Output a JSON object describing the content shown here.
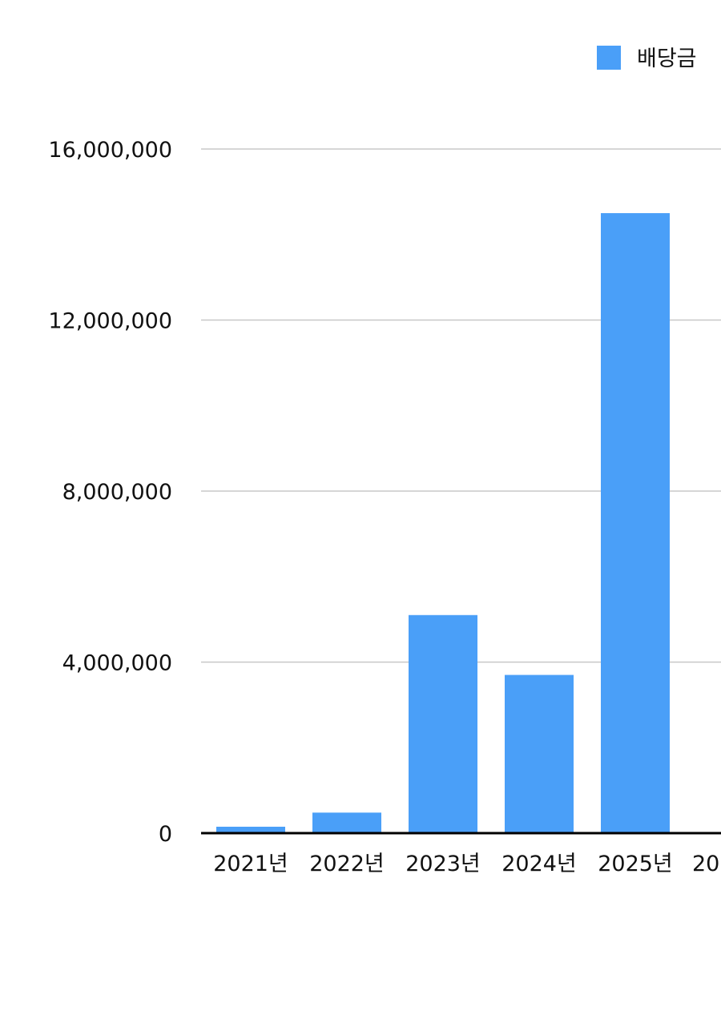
{
  "chart_data": {
    "type": "bar",
    "categories": [
      "2021년",
      "2022년",
      "2023년",
      "2024년",
      "2025년",
      "20"
    ],
    "series": [
      {
        "name": "배당금",
        "color": "#4a9ff8",
        "values": [
          150000,
          480000,
          5100000,
          3700000,
          14500000,
          null
        ]
      }
    ],
    "y_ticks": [
      "0",
      "4,000,000",
      "8,000,000",
      "12,000,000",
      "16,000,000"
    ],
    "ylim": [
      0,
      16000000
    ],
    "grid": true,
    "legend": "top-right",
    "gridline_color": "#c8c8c8",
    "axis_color": "#000000"
  }
}
